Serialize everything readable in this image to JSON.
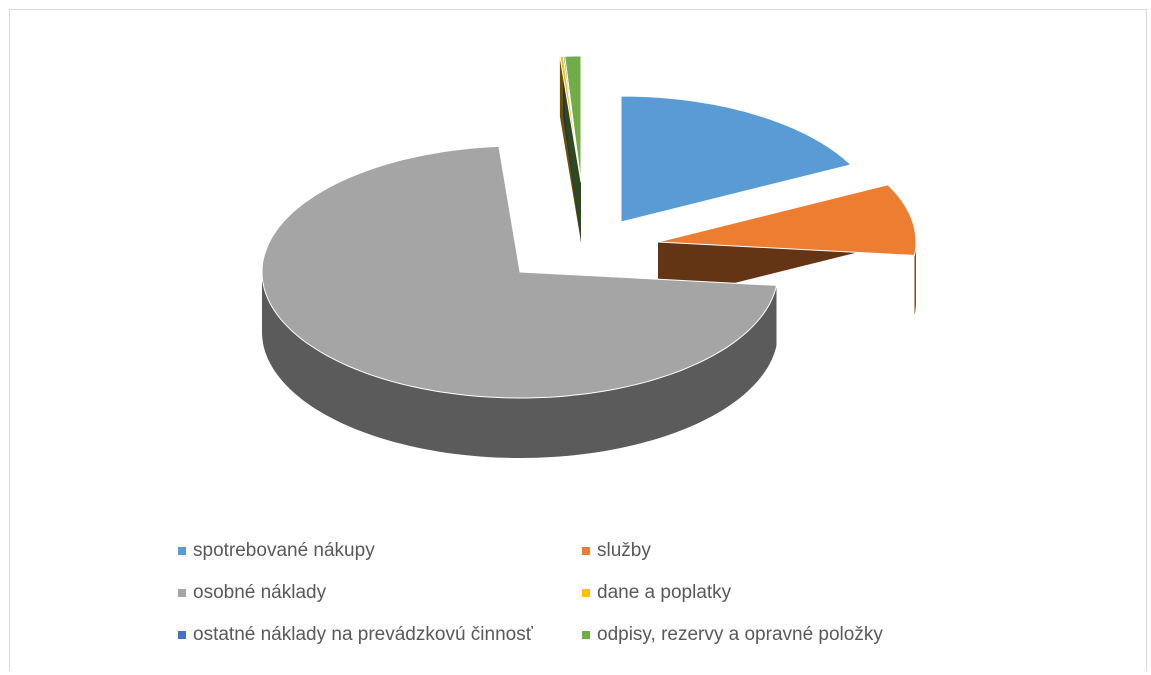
{
  "chart_data": {
    "type": "pie",
    "variant": "3d-exploded",
    "title": "",
    "categories": [
      "spotrebované nákupy",
      "služby",
      "osobné náklady",
      "dane a poplatky",
      "ostatné náklady na prevádzkovú činnosť",
      "odpisy, rezervy a opravné položky"
    ],
    "values": [
      17.5,
      9.2,
      72.0,
      0.2,
      0.1,
      1.0
    ],
    "value_unit": "percent",
    "colors": [
      "#5b9bd5",
      "#ed7d31",
      "#a5a5a5",
      "#ffc000",
      "#4472c4",
      "#70ad47"
    ],
    "legend_position": "bottom"
  },
  "legend": {
    "items": [
      {
        "label": "spotrebované nákupy",
        "color": "#5b9bd5"
      },
      {
        "label": "služby",
        "color": "#ed7d31"
      },
      {
        "label": "osobné náklady",
        "color": "#a5a5a5"
      },
      {
        "label": "dane a poplatky",
        "color": "#ffc000"
      },
      {
        "label": "ostatné náklady na prevádzkovú činnosť",
        "color": "#4472c4"
      },
      {
        "label": "odpisy, rezervy a opravné položky",
        "color": "#70ad47"
      }
    ]
  }
}
